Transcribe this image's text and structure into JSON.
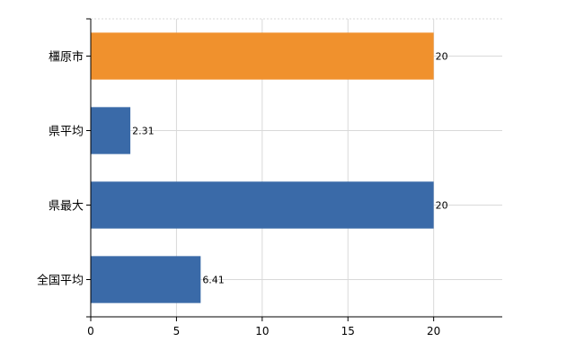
{
  "chart_data": {
    "type": "bar",
    "orientation": "horizontal",
    "categories": [
      "橿原市",
      "県平均",
      "県最大",
      "全国平均"
    ],
    "values": [
      20,
      2.31,
      20,
      6.41
    ],
    "value_labels": [
      "20",
      "2.31",
      "20",
      "6.41"
    ],
    "colors": [
      "#f0912d",
      "#3a6aa8",
      "#3a6aa8",
      "#3a6aa8"
    ],
    "xlim": [
      0,
      24
    ],
    "xticks": [
      0,
      5,
      10,
      15,
      20
    ],
    "xtick_labels": [
      "0",
      "5",
      "10",
      "15",
      "20"
    ],
    "grid": true,
    "legend": "none",
    "title": "",
    "xlabel": "",
    "ylabel": ""
  }
}
